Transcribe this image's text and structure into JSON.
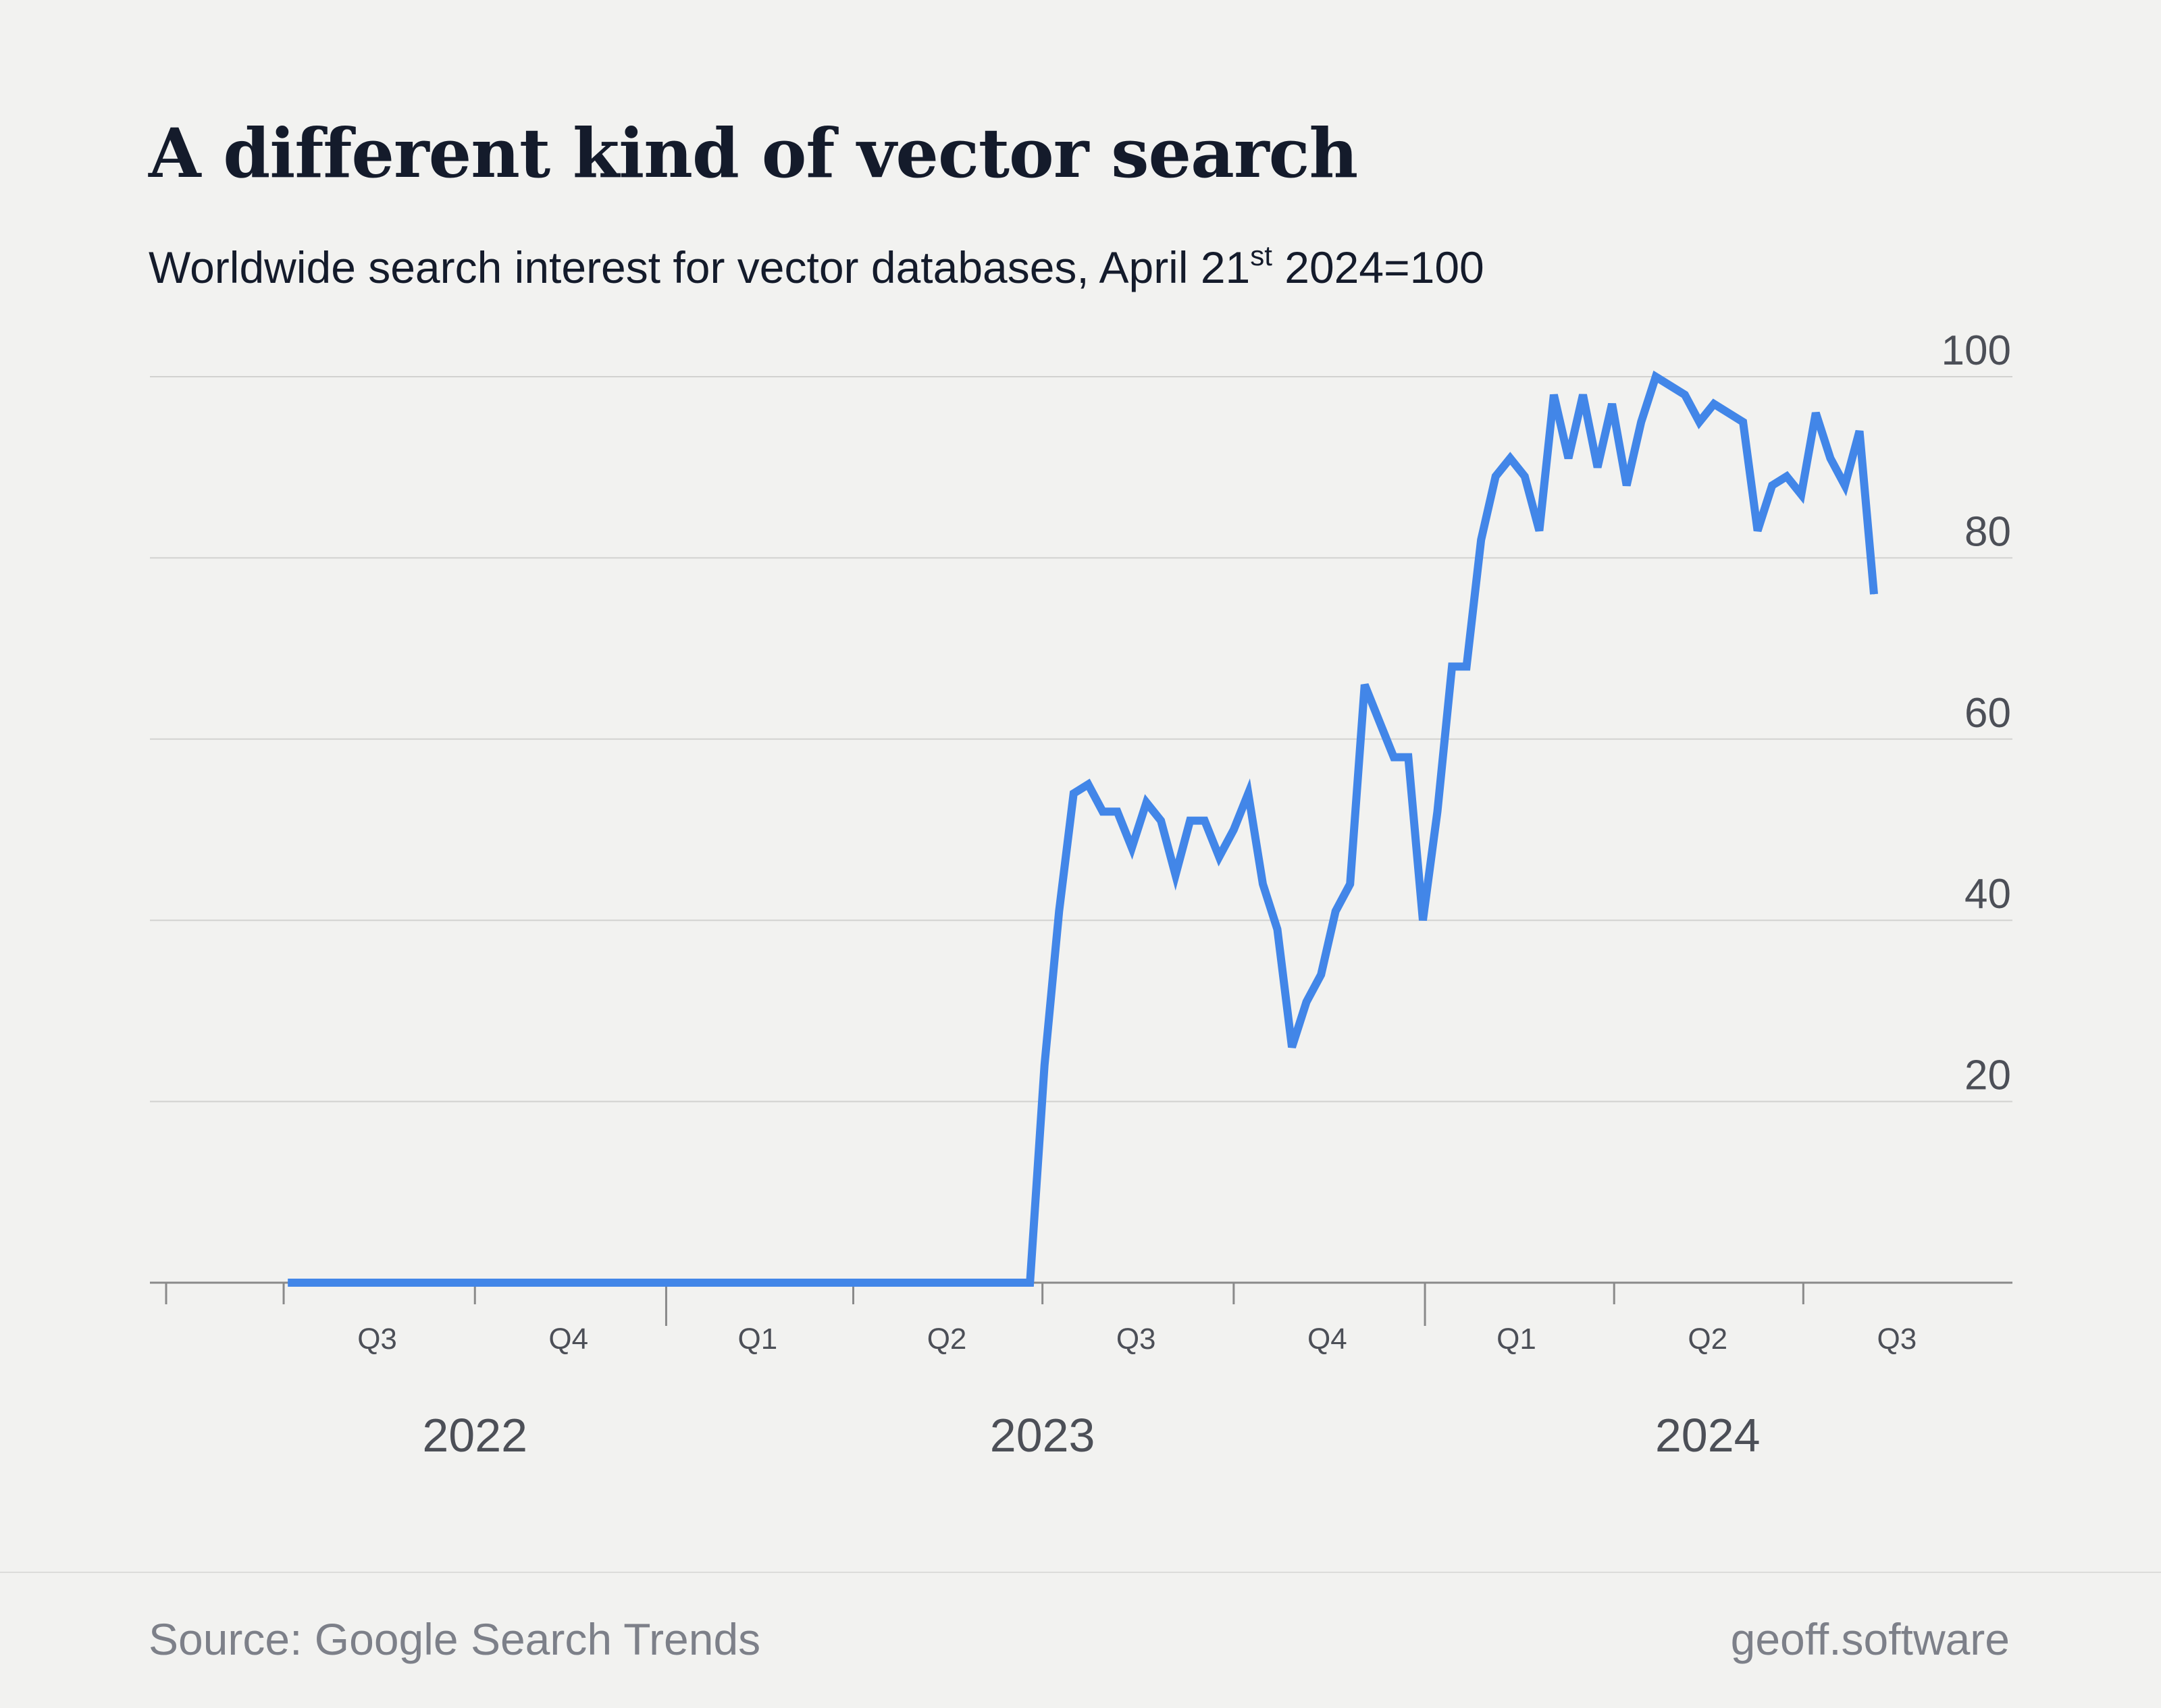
{
  "header": {
    "title": "A different kind of vector search",
    "subtitle_main": "Worldwide search interest for vector databases, April 21",
    "subtitle_sup": "st",
    "subtitle_tail": " 2024=100"
  },
  "footer": {
    "source": "Source: Google Search Trends",
    "brand": "geoff.software"
  },
  "chart_data": {
    "type": "line",
    "title": "A different kind of vector search",
    "ylabel": "",
    "xlabel": "",
    "ylim": [
      0,
      100
    ],
    "yticks": [
      20,
      40,
      60,
      80,
      100
    ],
    "grid": true,
    "y_axis_side": "right",
    "line_color": "#4286e8",
    "x_range": [
      "2022-06-05",
      "2024-08-04"
    ],
    "quarter_ticks": [
      "2022-07-01",
      "2022-10-01",
      "2023-01-01",
      "2023-04-01",
      "2023-07-01",
      "2023-10-01",
      "2024-01-01",
      "2024-04-01",
      "2024-07-01"
    ],
    "quarter_labels": [
      {
        "label": "Q3",
        "date": "2022-08-15"
      },
      {
        "label": "Q4",
        "date": "2022-11-15"
      },
      {
        "label": "Q1",
        "date": "2023-02-14"
      },
      {
        "label": "Q2",
        "date": "2023-05-16"
      },
      {
        "label": "Q3",
        "date": "2023-08-15"
      },
      {
        "label": "Q4",
        "date": "2023-11-15"
      },
      {
        "label": "Q1",
        "date": "2024-02-14"
      },
      {
        "label": "Q2",
        "date": "2024-05-16"
      },
      {
        "label": "Q3",
        "date": "2024-08-15"
      }
    ],
    "year_labels": [
      {
        "label": "2022",
        "date": "2022-10-01"
      },
      {
        "label": "2023",
        "date": "2023-07-01"
      },
      {
        "label": "2024",
        "date": "2024-05-16"
      }
    ],
    "series": [
      {
        "name": "",
        "points": [
          [
            "2022-07-03",
            0
          ],
          [
            "2022-09-04",
            0
          ],
          [
            "2022-11-06",
            0
          ],
          [
            "2023-01-01",
            0
          ],
          [
            "2023-03-05",
            0
          ],
          [
            "2023-05-07",
            0
          ],
          [
            "2023-06-18",
            0
          ],
          [
            "2023-06-25",
            0
          ],
          [
            "2023-07-02",
            24
          ],
          [
            "2023-07-09",
            41
          ],
          [
            "2023-07-16",
            54
          ],
          [
            "2023-07-23",
            55
          ],
          [
            "2023-07-30",
            52
          ],
          [
            "2023-08-06",
            52
          ],
          [
            "2023-08-13",
            48
          ],
          [
            "2023-08-20",
            53
          ],
          [
            "2023-08-27",
            51
          ],
          [
            "2023-09-03",
            45
          ],
          [
            "2023-09-10",
            51
          ],
          [
            "2023-09-17",
            51
          ],
          [
            "2023-09-24",
            47
          ],
          [
            "2023-10-01",
            50
          ],
          [
            "2023-10-08",
            54
          ],
          [
            "2023-10-15",
            44
          ],
          [
            "2023-10-22",
            39
          ],
          [
            "2023-10-29",
            26
          ],
          [
            "2023-11-05",
            31
          ],
          [
            "2023-11-12",
            34
          ],
          [
            "2023-11-19",
            41
          ],
          [
            "2023-11-26",
            44
          ],
          [
            "2023-12-03",
            66
          ],
          [
            "2023-12-10",
            62
          ],
          [
            "2023-12-17",
            58
          ],
          [
            "2023-12-24",
            58
          ],
          [
            "2023-12-31",
            40
          ],
          [
            "2024-01-07",
            52
          ],
          [
            "2024-01-14",
            68
          ],
          [
            "2024-01-21",
            68
          ],
          [
            "2024-01-28",
            82
          ],
          [
            "2024-02-04",
            89
          ],
          [
            "2024-02-11",
            91
          ],
          [
            "2024-02-18",
            89
          ],
          [
            "2024-02-25",
            83
          ],
          [
            "2024-03-03",
            98
          ],
          [
            "2024-03-10",
            91
          ],
          [
            "2024-03-17",
            98
          ],
          [
            "2024-03-24",
            90
          ],
          [
            "2024-03-31",
            97
          ],
          [
            "2024-04-07",
            88
          ],
          [
            "2024-04-14",
            95
          ],
          [
            "2024-04-21",
            100
          ],
          [
            "2024-04-28",
            99
          ],
          [
            "2024-05-05",
            98
          ],
          [
            "2024-05-12",
            95
          ],
          [
            "2024-05-19",
            97
          ],
          [
            "2024-05-26",
            96
          ],
          [
            "2024-06-02",
            95
          ],
          [
            "2024-06-09",
            83
          ],
          [
            "2024-06-16",
            88
          ],
          [
            "2024-06-23",
            89
          ],
          [
            "2024-06-30",
            87
          ],
          [
            "2024-07-07",
            96
          ],
          [
            "2024-07-14",
            91
          ],
          [
            "2024-07-21",
            88
          ],
          [
            "2024-07-28",
            94
          ],
          [
            "2024-08-04",
            76
          ]
        ]
      }
    ]
  }
}
